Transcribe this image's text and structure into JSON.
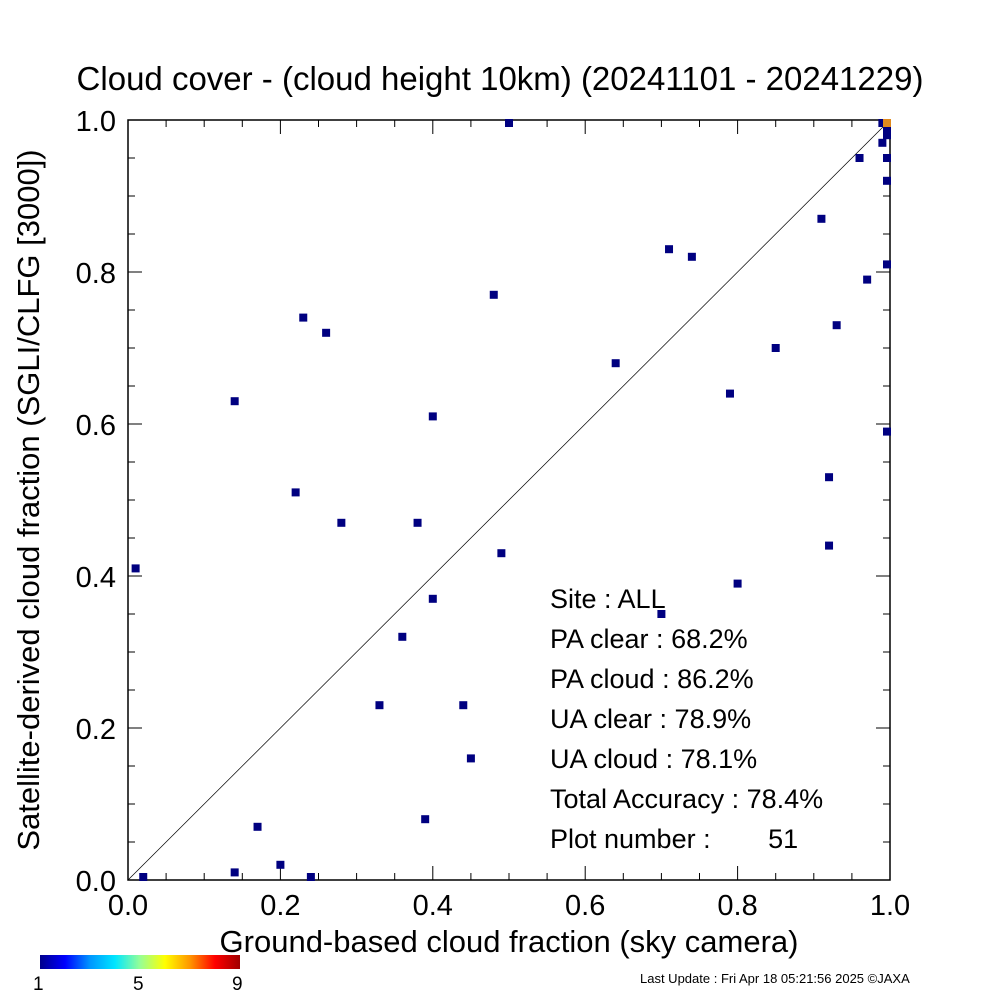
{
  "chart_data": {
    "type": "scatter",
    "title": "Cloud cover - (cloud height 10km)  (20241101 - 20241229)",
    "xlabel": "Ground-based cloud fraction (sky camera)",
    "ylabel": "Satellite-derived cloud fraction (SGLI/CLFG [3000])",
    "xlim": [
      0.0,
      1.0
    ],
    "ylim": [
      0.0,
      1.0
    ],
    "x_ticks": [
      "0.0",
      "0.2",
      "0.4",
      "0.6",
      "0.8",
      "1.0"
    ],
    "y_ticks": [
      "0.0",
      "0.2",
      "0.4",
      "0.6",
      "0.8",
      "1.0"
    ],
    "reference_line": "y = x",
    "grid": false,
    "point_color": "#000080",
    "highlight_color": "#e08a1e",
    "points": [
      {
        "x": 0.01,
        "y": 0.41
      },
      {
        "x": 0.02,
        "y": 0.0
      },
      {
        "x": 0.14,
        "y": 0.63
      },
      {
        "x": 0.14,
        "y": 0.01
      },
      {
        "x": 0.17,
        "y": 0.07
      },
      {
        "x": 0.2,
        "y": 0.02
      },
      {
        "x": 0.22,
        "y": 0.51
      },
      {
        "x": 0.23,
        "y": 0.74
      },
      {
        "x": 0.24,
        "y": 0.0
      },
      {
        "x": 0.26,
        "y": 0.72
      },
      {
        "x": 0.28,
        "y": 0.47
      },
      {
        "x": 0.33,
        "y": 0.23
      },
      {
        "x": 0.36,
        "y": 0.32
      },
      {
        "x": 0.38,
        "y": 0.47
      },
      {
        "x": 0.39,
        "y": 0.08
      },
      {
        "x": 0.4,
        "y": 0.61
      },
      {
        "x": 0.4,
        "y": 0.37
      },
      {
        "x": 0.44,
        "y": 0.23
      },
      {
        "x": 0.45,
        "y": 0.16
      },
      {
        "x": 0.48,
        "y": 0.77
      },
      {
        "x": 0.49,
        "y": 0.43
      },
      {
        "x": 0.5,
        "y": 1.0
      },
      {
        "x": 0.64,
        "y": 0.68
      },
      {
        "x": 0.7,
        "y": 0.35
      },
      {
        "x": 0.71,
        "y": 0.83
      },
      {
        "x": 0.74,
        "y": 0.82
      },
      {
        "x": 0.79,
        "y": 0.64
      },
      {
        "x": 0.8,
        "y": 0.39
      },
      {
        "x": 0.85,
        "y": 0.7
      },
      {
        "x": 0.91,
        "y": 0.87
      },
      {
        "x": 0.92,
        "y": 0.53
      },
      {
        "x": 0.92,
        "y": 0.44
      },
      {
        "x": 0.93,
        "y": 0.73
      },
      {
        "x": 0.96,
        "y": 0.95
      },
      {
        "x": 0.97,
        "y": 0.79
      },
      {
        "x": 0.99,
        "y": 1.0
      },
      {
        "x": 0.99,
        "y": 0.97
      },
      {
        "x": 1.0,
        "y": 0.99
      },
      {
        "x": 1.0,
        "y": 0.98
      },
      {
        "x": 1.0,
        "y": 0.95
      },
      {
        "x": 1.0,
        "y": 0.92
      },
      {
        "x": 1.0,
        "y": 0.81
      },
      {
        "x": 1.0,
        "y": 0.59
      },
      {
        "x": 1.0,
        "y": 1.0,
        "highlight": true
      }
    ],
    "stats": [
      {
        "label": "Site :",
        "value": "ALL"
      },
      {
        "label": "PA clear :",
        "value": "68.2%"
      },
      {
        "label": "PA cloud :",
        "value": "86.2%"
      },
      {
        "label": "UA clear :",
        "value": "78.9%"
      },
      {
        "label": "UA cloud :",
        "value": "78.1%"
      },
      {
        "label": "Total Accuracy :",
        "value": "78.4%"
      },
      {
        "label": "Plot number :",
        "value": "51"
      }
    ],
    "colorbar": {
      "labels": [
        "1",
        "5",
        "9"
      ],
      "colors": [
        "#00008c",
        "#0000ff",
        "#0096ff",
        "#00e6ff",
        "#96ff96",
        "#ffff00",
        "#ff9600",
        "#ff0000",
        "#a00000"
      ]
    }
  },
  "footer": {
    "last_update": "Last Update : Fri Apr 18 05:21:56 2025  ©JAXA"
  }
}
